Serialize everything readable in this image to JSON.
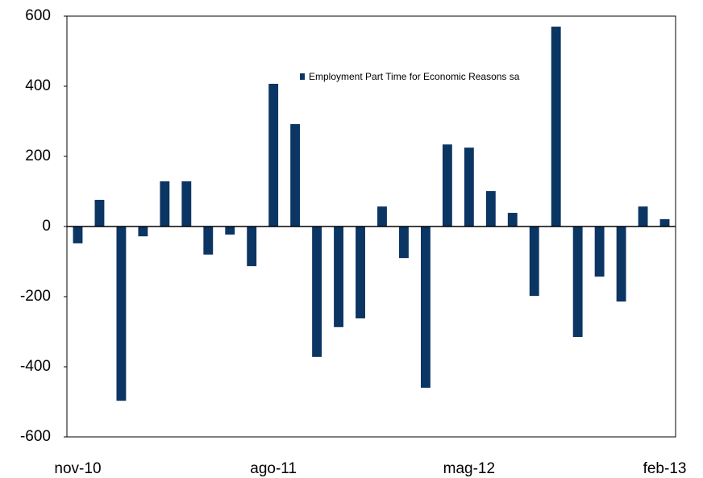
{
  "chart_data": {
    "type": "bar",
    "categories": [
      "nov-10",
      null,
      null,
      null,
      null,
      null,
      null,
      null,
      null,
      "ago-11",
      null,
      null,
      null,
      null,
      null,
      null,
      null,
      null,
      "mag-12",
      null,
      null,
      null,
      null,
      null,
      null,
      null,
      null,
      "feb-13"
    ],
    "series": [
      {
        "name": "Employment Part Time for Economic Reasons sa",
        "color": "#0b3563",
        "values": [
          -48,
          76,
          -497,
          -28,
          129,
          129,
          -80,
          -23,
          -113,
          407,
          292,
          -372,
          -287,
          -262,
          57,
          -90,
          -460,
          234,
          225,
          101,
          39,
          -198,
          570,
          -315,
          -143,
          -214,
          57,
          21
        ]
      }
    ],
    "ylim": [
      -600,
      600
    ],
    "yticks": [
      -600,
      -400,
      -200,
      0,
      200,
      400,
      600
    ]
  }
}
